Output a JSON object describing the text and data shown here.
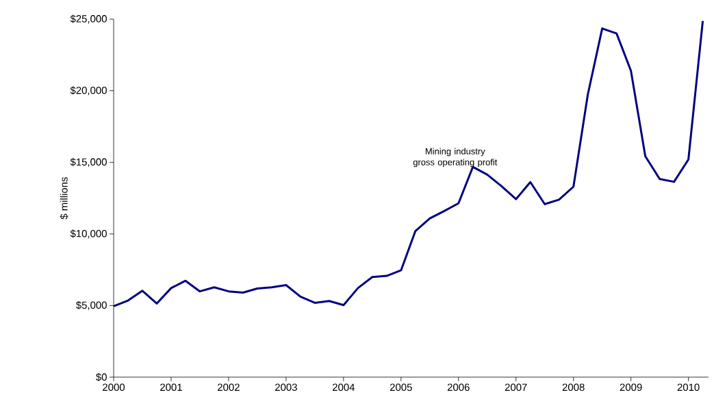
{
  "chart_data": {
    "type": "line",
    "ylabel": "$ millions",
    "xlim": [
      2000,
      2010.35
    ],
    "ylim": [
      0,
      25000
    ],
    "xticks": [
      2000,
      2001,
      2002,
      2003,
      2004,
      2005,
      2006,
      2007,
      2008,
      2009,
      2010
    ],
    "yticks": [
      {
        "value": 0,
        "label": "$0"
      },
      {
        "value": 5000,
        "label": "$5,000"
      },
      {
        "value": 10000,
        "label": "$10,000"
      },
      {
        "value": 15000,
        "label": "$15,000"
      },
      {
        "value": 20000,
        "label": "$20,000"
      },
      {
        "value": 25000,
        "label": "$25,000"
      }
    ],
    "x": [
      2000,
      2000.25,
      2000.5,
      2000.75,
      2001,
      2001.25,
      2001.5,
      2001.75,
      2002,
      2002.25,
      2002.5,
      2002.75,
      2003,
      2003.25,
      2003.5,
      2003.75,
      2004,
      2004.25,
      2004.5,
      2004.75,
      2005,
      2005.25,
      2005.5,
      2005.75,
      2006,
      2006.25,
      2006.5,
      2006.75,
      2007,
      2007.25,
      2007.5,
      2007.75,
      2008,
      2008.25,
      2008.5,
      2008.75,
      2009,
      2009.25,
      2009.5,
      2009.75,
      2010,
      2010.25
    ],
    "series": [
      {
        "name": "Mining industry gross operating profit",
        "color": "#000080",
        "values": [
          4950,
          5350,
          6030,
          5140,
          6220,
          6730,
          5990,
          6270,
          5990,
          5900,
          6190,
          6270,
          6430,
          5620,
          5190,
          5320,
          5030,
          6220,
          6990,
          7070,
          7460,
          10200,
          11080,
          11600,
          12140,
          14680,
          14140,
          13330,
          12430,
          13620,
          12080,
          12400,
          13300,
          19740,
          24350,
          24000,
          21390,
          15430,
          13840,
          13640,
          15200,
          24870
        ]
      }
    ],
    "grid": false,
    "legend": false,
    "marker": "none",
    "line_style": "solid"
  }
}
